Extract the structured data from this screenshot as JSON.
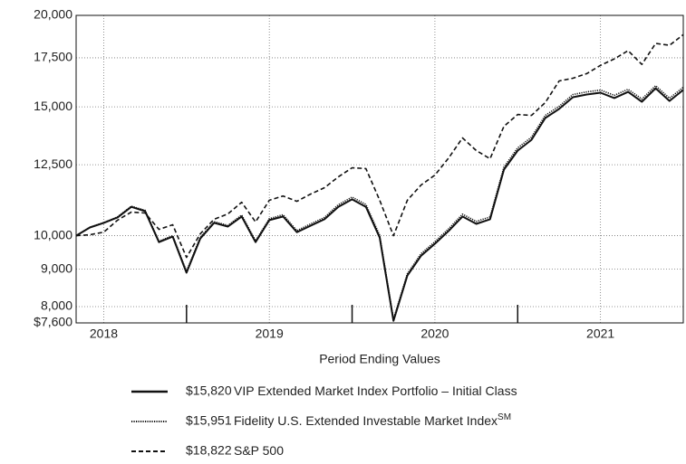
{
  "chart_data": {
    "type": "line",
    "x_label": "Period Ending Values",
    "log_y": true,
    "grid": true,
    "ylim": [
      7600,
      20000
    ],
    "yticks": [
      {
        "value": 20000,
        "label": "20,000"
      },
      {
        "value": 17500,
        "label": "17,500"
      },
      {
        "value": 15000,
        "label": "15,000"
      },
      {
        "value": 12500,
        "label": "12,500"
      },
      {
        "value": 10000,
        "label": "10,000"
      },
      {
        "value": 9000,
        "label": "9,000"
      },
      {
        "value": 8000,
        "label": "8,000"
      },
      {
        "value": 7600,
        "label": "$7,600"
      }
    ],
    "xlim": [
      2018.3333,
      2022
    ],
    "xticks": [
      {
        "value": 2018.5,
        "label": "2018"
      },
      {
        "value": 2019.5,
        "label": "2019"
      },
      {
        "value": 2020.5,
        "label": "2020"
      },
      {
        "value": 2021.5,
        "label": "2021"
      }
    ],
    "x_boundaries": [
      2019,
      2020,
      2021
    ],
    "x": [
      2018.3333,
      2018.4167,
      2018.5,
      2018.5833,
      2018.6667,
      2018.75,
      2018.8333,
      2018.9167,
      2019,
      2019.0833,
      2019.1667,
      2019.25,
      2019.3333,
      2019.4167,
      2019.5,
      2019.5833,
      2019.6667,
      2019.75,
      2019.8333,
      2019.9167,
      2020,
      2020.0833,
      2020.1667,
      2020.25,
      2020.3333,
      2020.4167,
      2020.5,
      2020.5833,
      2020.6667,
      2020.75,
      2020.8333,
      2020.9167,
      2021,
      2021.0833,
      2021.1667,
      2021.25,
      2021.3333,
      2021.4167,
      2021.5,
      2021.5833,
      2021.6667,
      2021.75,
      2021.8333,
      2021.9167,
      2022
    ],
    "series": [
      {
        "name": "VIP Extended Market Index Portfolio – Initial Class",
        "final_value_label": "$15,820",
        "color": "#111111",
        "style": "solid",
        "values": [
          10000,
          10260,
          10410,
          10590,
          10950,
          10800,
          9800,
          9970,
          8900,
          9910,
          10410,
          10290,
          10620,
          9800,
          10500,
          10620,
          10110,
          10320,
          10530,
          10950,
          11210,
          10950,
          9940,
          7650,
          8820,
          9390,
          9750,
          10150,
          10620,
          10380,
          10530,
          12310,
          13070,
          13520,
          14480,
          14900,
          15460,
          15590,
          15680,
          15420,
          15720,
          15240,
          15900,
          15280,
          15820
        ]
      },
      {
        "name": "Fidelity U.S. Extended Investable Market Index",
        "name_superscript": "SM",
        "final_value_label": "$15,951",
        "color": "#111111",
        "style": "dotted",
        "values": [
          10000,
          10270,
          10420,
          10610,
          10970,
          10830,
          9830,
          10000,
          8940,
          9950,
          10450,
          10330,
          10670,
          9840,
          10550,
          10680,
          10160,
          10380,
          10590,
          11020,
          11290,
          11030,
          10010,
          7690,
          8870,
          9450,
          9810,
          10220,
          10700,
          10460,
          10610,
          12410,
          13180,
          13630,
          14600,
          15020,
          15590,
          15720,
          15810,
          15550,
          15850,
          15370,
          16030,
          15410,
          15951
        ]
      },
      {
        "name": "S&P 500",
        "final_value_label": "$18,822",
        "color": "#111111",
        "style": "dashed",
        "values": [
          10000,
          10030,
          10110,
          10500,
          10770,
          10740,
          10200,
          10350,
          9340,
          10060,
          10530,
          10710,
          11110,
          10440,
          11180,
          11330,
          11140,
          11400,
          11630,
          12030,
          12380,
          12350,
          11180,
          10000,
          11180,
          11730,
          12100,
          12770,
          13600,
          13070,
          12740,
          14110,
          14640,
          14600,
          15200,
          16270,
          16410,
          16650,
          17090,
          17440,
          17900,
          17140,
          18310,
          18200,
          18822
        ]
      }
    ]
  }
}
